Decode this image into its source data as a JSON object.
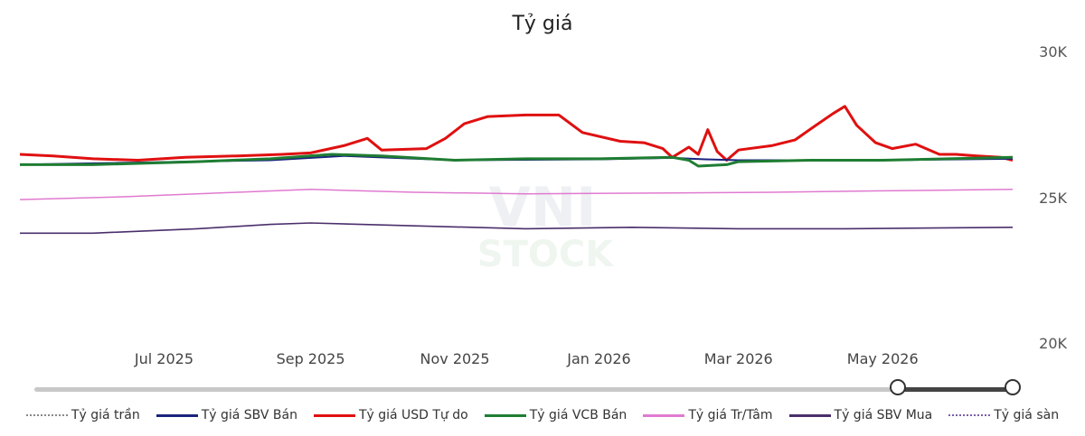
{
  "chart_data": {
    "type": "line",
    "title": "Tỷ giá",
    "xlabel": "",
    "ylabel": "",
    "ylim": [
      20000,
      30000
    ],
    "y_ticks": [
      {
        "value": 30000,
        "label": "30K"
      },
      {
        "value": 25000,
        "label": "25K"
      },
      {
        "value": 20000,
        "label": "20K"
      }
    ],
    "x_range": [
      "2025-05-01",
      "2026-06-25"
    ],
    "x_ticks": [
      {
        "date": "2025-07-01",
        "label": "Jul 2025"
      },
      {
        "date": "2025-09-01",
        "label": "Sep 2025"
      },
      {
        "date": "2025-11-01",
        "label": "Nov 2025"
      },
      {
        "date": "2026-01-01",
        "label": "Jan 2026"
      },
      {
        "date": "2026-03-01",
        "label": "Mar 2026"
      },
      {
        "date": "2026-05-01",
        "label": "May 2026"
      }
    ],
    "grid": false,
    "legend_position": "bottom",
    "series": [
      {
        "name": "Tỷ giá trần",
        "color": "#888888",
        "style": "dotted",
        "points": []
      },
      {
        "name": "Tỷ giá SBV Bán",
        "color": "#1a237e",
        "style": "solid",
        "points": [
          [
            "2025-05-01",
            26150
          ],
          [
            "2025-08-15",
            26300
          ],
          [
            "2025-09-15",
            26450
          ],
          [
            "2025-11-01",
            26300
          ],
          [
            "2026-01-01",
            26330
          ],
          [
            "2026-02-01",
            26380
          ],
          [
            "2026-02-15",
            26330
          ],
          [
            "2026-03-01",
            26300
          ],
          [
            "2026-04-01",
            26300
          ],
          [
            "2026-05-01",
            26300
          ],
          [
            "2026-06-25",
            26350
          ]
        ]
      },
      {
        "name": "Tỷ giá USD Tự do",
        "color": "#e01010",
        "style": "solid",
        "points": [
          [
            "2025-05-01",
            26500
          ],
          [
            "2025-05-15",
            26450
          ],
          [
            "2025-06-01",
            26350
          ],
          [
            "2025-06-20",
            26300
          ],
          [
            "2025-07-10",
            26400
          ],
          [
            "2025-08-01",
            26450
          ],
          [
            "2025-08-20",
            26500
          ],
          [
            "2025-09-01",
            26550
          ],
          [
            "2025-09-15",
            26800
          ],
          [
            "2025-09-25",
            27050
          ],
          [
            "2025-10-01",
            26650
          ],
          [
            "2025-10-20",
            26700
          ],
          [
            "2025-10-28",
            27050
          ],
          [
            "2025-11-05",
            27550
          ],
          [
            "2025-11-15",
            27800
          ],
          [
            "2025-12-01",
            27850
          ],
          [
            "2025-12-15",
            27850
          ],
          [
            "2025-12-25",
            27250
          ],
          [
            "2026-01-10",
            26950
          ],
          [
            "2026-01-20",
            26900
          ],
          [
            "2026-01-28",
            26700
          ],
          [
            "2026-02-01",
            26400
          ],
          [
            "2026-02-08",
            26750
          ],
          [
            "2026-02-12",
            26500
          ],
          [
            "2026-02-16",
            27350
          ],
          [
            "2026-02-20",
            26600
          ],
          [
            "2026-02-24",
            26300
          ],
          [
            "2026-03-01",
            26650
          ],
          [
            "2026-03-15",
            26800
          ],
          [
            "2026-03-25",
            27000
          ],
          [
            "2026-04-01",
            27400
          ],
          [
            "2026-04-10",
            27900
          ],
          [
            "2026-04-15",
            28150
          ],
          [
            "2026-04-20",
            27500
          ],
          [
            "2026-04-28",
            26900
          ],
          [
            "2026-05-05",
            26700
          ],
          [
            "2026-05-15",
            26850
          ],
          [
            "2026-05-25",
            26500
          ],
          [
            "2026-06-01",
            26500
          ],
          [
            "2026-06-10",
            26450
          ],
          [
            "2026-06-20",
            26400
          ],
          [
            "2026-06-25",
            26300
          ]
        ]
      },
      {
        "name": "Tỷ giá VCB Bán",
        "color": "#1e7d32",
        "style": "solid",
        "points": [
          [
            "2025-05-01",
            26150
          ],
          [
            "2025-06-01",
            26150
          ],
          [
            "2025-07-15",
            26250
          ],
          [
            "2025-08-15",
            26350
          ],
          [
            "2025-09-10",
            26500
          ],
          [
            "2025-10-01",
            26450
          ],
          [
            "2025-11-01",
            26300
          ],
          [
            "2025-12-01",
            26350
          ],
          [
            "2026-01-01",
            26350
          ],
          [
            "2026-02-01",
            26400
          ],
          [
            "2026-02-08",
            26300
          ],
          [
            "2026-02-12",
            26100
          ],
          [
            "2026-02-24",
            26150
          ],
          [
            "2026-03-01",
            26250
          ],
          [
            "2026-04-01",
            26300
          ],
          [
            "2026-05-01",
            26300
          ],
          [
            "2026-06-25",
            26400
          ]
        ]
      },
      {
        "name": "Tỷ giá Tr/Tâm",
        "color": "#e07ad0",
        "style": "solid",
        "points": [
          [
            "2025-05-01",
            24950
          ],
          [
            "2025-06-15",
            25050
          ],
          [
            "2025-08-01",
            25200
          ],
          [
            "2025-09-01",
            25300
          ],
          [
            "2025-10-15",
            25200
          ],
          [
            "2025-12-01",
            25150
          ],
          [
            "2026-02-01",
            25180
          ],
          [
            "2026-03-15",
            25200
          ],
          [
            "2026-05-01",
            25250
          ],
          [
            "2026-06-25",
            25300
          ]
        ]
      },
      {
        "name": "Tỷ giá SBV Mua",
        "color": "#4a2f6b",
        "style": "solid",
        "points": [
          [
            "2025-05-01",
            23800
          ],
          [
            "2025-06-01",
            23800
          ],
          [
            "2025-07-15",
            23950
          ],
          [
            "2025-08-15",
            24100
          ],
          [
            "2025-09-01",
            24150
          ],
          [
            "2025-10-15",
            24050
          ],
          [
            "2025-12-01",
            23950
          ],
          [
            "2026-01-15",
            24000
          ],
          [
            "2026-03-01",
            23950
          ],
          [
            "2026-04-15",
            23950
          ],
          [
            "2026-06-25",
            24000
          ]
        ]
      },
      {
        "name": "Tỷ giá sàn",
        "color": "#7a5fa8",
        "style": "dotted",
        "points": []
      }
    ]
  },
  "watermark": {
    "line1": "VNI",
    "line2": "STOCK"
  }
}
